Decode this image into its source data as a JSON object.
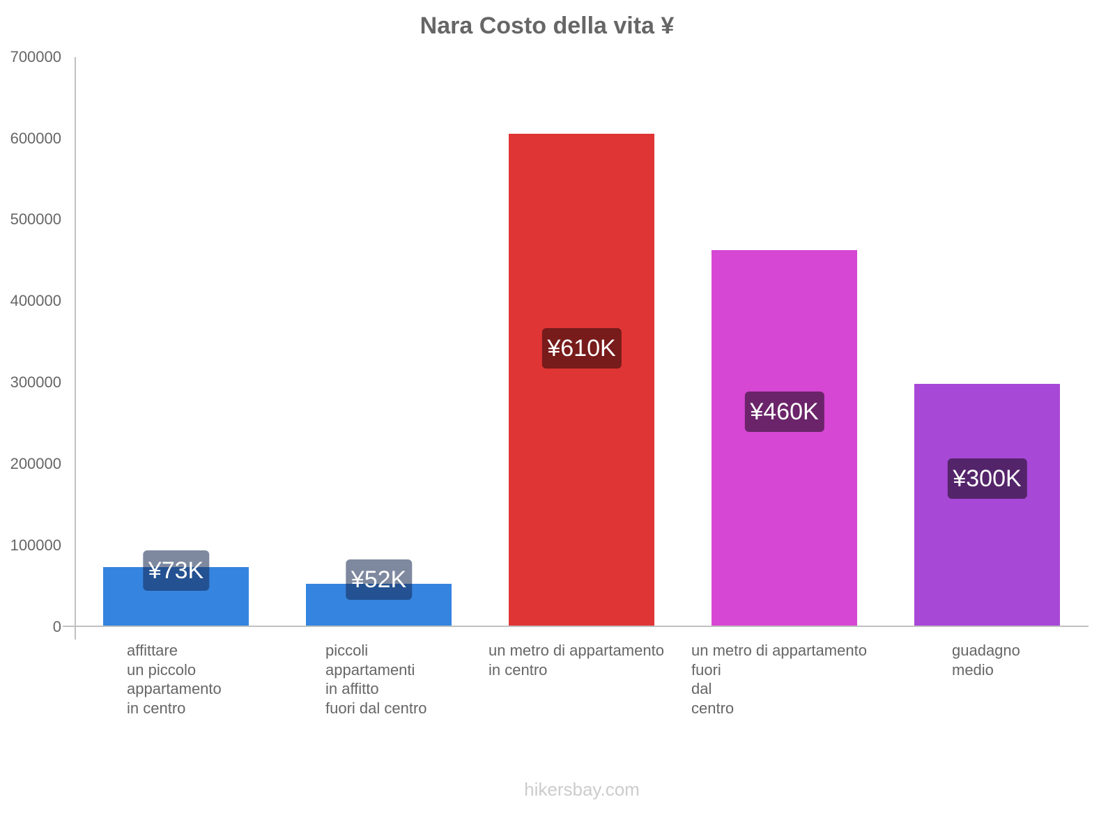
{
  "title": "Nara Costo della vita ¥",
  "watermark": "hikersbay.com",
  "y_axis": {
    "ticks": [
      "700000",
      "600000",
      "500000",
      "400000",
      "300000",
      "200000",
      "100000",
      "0"
    ]
  },
  "bars": [
    {
      "label_lines": "affittare\nun piccolo\nappartamento\nin centro",
      "value_label": "¥73K",
      "value": 73000,
      "color": "#3584e0",
      "badge_color": "rgba(20,40,80,0.55)"
    },
    {
      "label_lines": "piccoli\nappartamenti\nin affitto\nfuori dal centro",
      "value_label": "¥52K",
      "value": 52000,
      "color": "#3584e0",
      "badge_color": "rgba(20,40,80,0.55)"
    },
    {
      "label_lines": "un metro di appartamento\nin centro",
      "value_label": "¥610K",
      "value": 606000,
      "color": "#e03535",
      "badge_color": "#771b1b"
    },
    {
      "label_lines": "un metro di appartamento\nfuori\ndal\ncentro",
      "value_label": "¥460K",
      "value": 463000,
      "color": "#d647d3",
      "badge_color": "#6b246a"
    },
    {
      "label_lines": "guadagno\nmedio",
      "value_label": "¥300K",
      "value": 298000,
      "color": "#a748d6",
      "badge_color": "#54246b"
    }
  ],
  "chart_data": {
    "type": "bar",
    "title": "Nara Costo della vita ¥",
    "xlabel": "",
    "ylabel": "",
    "ylim": [
      0,
      700000
    ],
    "yticks": [
      0,
      100000,
      200000,
      300000,
      400000,
      500000,
      600000,
      700000
    ],
    "grid": false,
    "legend": null,
    "categories": [
      "affittare un piccolo appartamento in centro",
      "piccoli appartamenti in affitto fuori dal centro",
      "un metro di appartamento in centro",
      "un metro di appartamento fuori dal centro",
      "guadagno medio"
    ],
    "values": [
      73000,
      52000,
      610000,
      460000,
      300000
    ],
    "data_labels": [
      "¥73K",
      "¥52K",
      "¥610K",
      "¥460K",
      "¥300K"
    ],
    "colors": [
      "#3584e0",
      "#3584e0",
      "#e03535",
      "#d647d3",
      "#a748d6"
    ]
  }
}
